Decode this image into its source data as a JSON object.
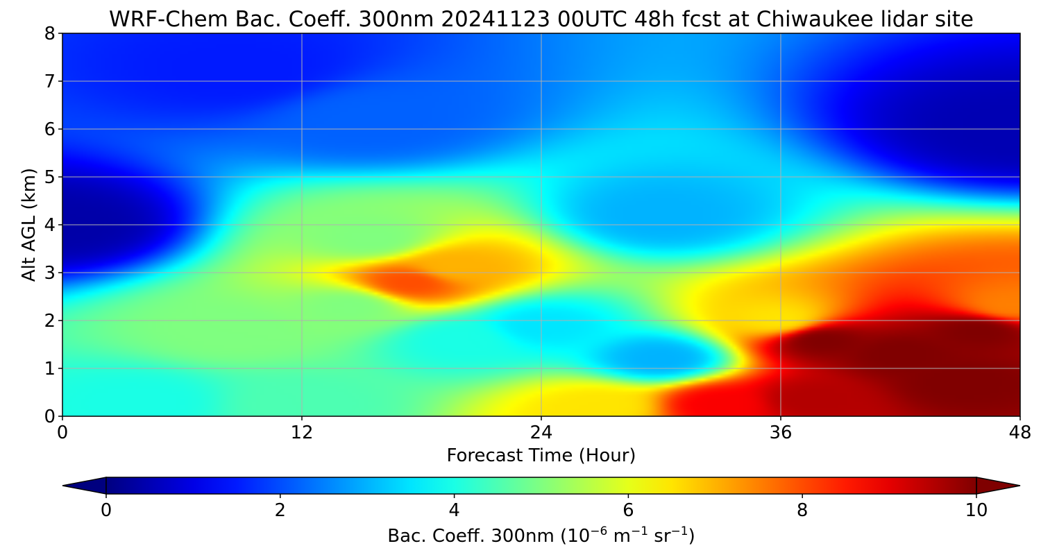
{
  "chart_data": {
    "type": "heatmap",
    "title": "WRF-Chem Bac. Coeff. 300nm  20241123 00UTC 48h fcst at Chiwaukee lidar site",
    "xlabel": "Forecast Time (Hour)",
    "ylabel": "Alt AGL (km)",
    "xlim": [
      0,
      48
    ],
    "ylim": [
      0,
      8
    ],
    "xticks": [
      "0",
      "12",
      "24",
      "36",
      "48"
    ],
    "yticks": [
      "0",
      "1",
      "2",
      "3",
      "4",
      "5",
      "6",
      "7",
      "8"
    ],
    "grid": true,
    "colorbar": {
      "orientation": "horizontal",
      "placement": "bottom",
      "label_main": "Bac. Coeff. 300nm  (10",
      "label_exp1": "−6",
      "label_mid": " m",
      "label_exp2": "−1",
      "label_mid2": " sr",
      "label_exp3": "−1",
      "label_end": ")",
      "range": [
        0,
        10
      ],
      "ticks": [
        "0",
        "2",
        "4",
        "6",
        "8",
        "10"
      ],
      "colormap": "jet",
      "extend": "both"
    },
    "features": [
      {
        "t": 0,
        "z": 4,
        "v": 0.4
      },
      {
        "t": 48,
        "z": 6,
        "v": 0.5
      },
      {
        "t": 9,
        "z": 7.2,
        "v": 1.5
      },
      {
        "t": 15.5,
        "z": 6.2,
        "v": 2.2
      },
      {
        "t": 30,
        "z": 4.2,
        "v": 3.0
      },
      {
        "t": 17.5,
        "z": 2.8,
        "v": 8.0
      },
      {
        "t": 19.5,
        "z": 3.1,
        "v": 7.0
      },
      {
        "t": 15.5,
        "z": 3.7,
        "v": 5.0
      },
      {
        "t": 14.5,
        "z": 2.3,
        "v": 5.0
      },
      {
        "t": 8.5,
        "z": 1.8,
        "v": 5.0
      },
      {
        "t": 20,
        "z": 1.6,
        "v": 4.0
      },
      {
        "t": 24,
        "z": 1.9,
        "v": 3.5
      },
      {
        "t": 30,
        "z": 1.2,
        "v": 3.0
      },
      {
        "t": 4,
        "z": 0.3,
        "v": 4.0
      },
      {
        "t": 12,
        "z": 0.25,
        "v": 4.5
      },
      {
        "t": 27,
        "z": 0.2,
        "v": 6.5
      },
      {
        "t": 33,
        "z": 0.25,
        "v": 8.8
      },
      {
        "t": 37.5,
        "z": 0.35,
        "v": 9.5
      },
      {
        "t": 36,
        "z": 2.0,
        "v": 6.5
      },
      {
        "t": 38,
        "z": 1.6,
        "v": 10.0
      },
      {
        "t": 42,
        "z": 1.3,
        "v": 10.0
      },
      {
        "t": 45,
        "z": 0.7,
        "v": 10.0
      },
      {
        "t": 46,
        "z": 1.8,
        "v": 10.0
      },
      {
        "t": 47.5,
        "z": 2.3,
        "v": 7.5
      }
    ]
  }
}
